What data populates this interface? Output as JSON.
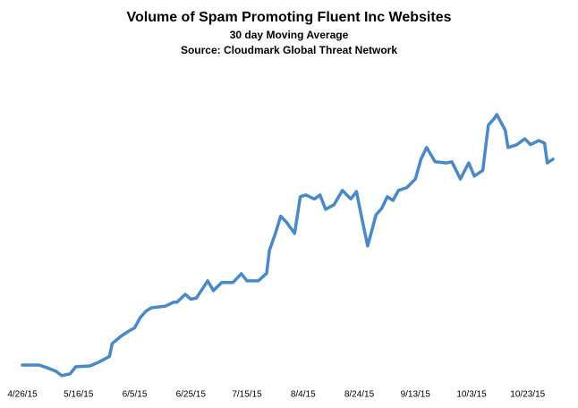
{
  "chart_data": {
    "type": "line",
    "title": "Volume of Spam Promoting Fluent Inc Websites",
    "subtitle": "30 day Moving Average",
    "source": "Source: Cloudmark Global Threat Network",
    "x": [
      "4/26/15",
      "5/2/15",
      "5/5/15",
      "5/8/15",
      "5/10/15",
      "5/13/15",
      "5/15/15",
      "5/20/15",
      "5/23/15",
      "5/27/15",
      "5/28/15",
      "5/31/15",
      "6/3/15",
      "6/5/15",
      "6/7/15",
      "6/9/15",
      "6/11/15",
      "6/16/15",
      "6/19/15",
      "6/20/15",
      "6/23/15",
      "6/25/15",
      "6/27/15",
      "7/1/15",
      "7/3/15",
      "7/6/15",
      "7/10/15",
      "7/13/15",
      "7/15/15",
      "7/19/15",
      "7/22/15",
      "7/23/15",
      "7/25/15",
      "7/27/15",
      "7/29/15",
      "8/1/15",
      "8/3/15",
      "8/5/15",
      "8/8/15",
      "8/10/15",
      "8/12/15",
      "8/15/15",
      "8/18/15",
      "8/21/15",
      "8/23/15",
      "8/25/15",
      "8/27/15",
      "8/30/15",
      "9/1/15",
      "9/3/15",
      "9/5/15",
      "9/7/15",
      "9/10/15",
      "9/13/15",
      "9/15/15",
      "9/17/15",
      "9/20/15",
      "9/24/15",
      "9/26/15",
      "9/29/15",
      "10/2/15",
      "10/4/15",
      "10/7/15",
      "10/9/15",
      "10/11/15",
      "10/12/15",
      "10/15/15",
      "10/16/15",
      "10/19/15",
      "10/22/15",
      "10/24/15",
      "10/27/15",
      "10/29/15",
      "10/30/15",
      "11/1/15"
    ],
    "series": [
      {
        "color": "#4a89c8",
        "values": [
          10,
          10,
          9,
          7.8,
          6.3,
          6.9,
          9.4,
          9.7,
          10.9,
          13,
          17.5,
          20,
          21.9,
          23,
          26.6,
          28.8,
          30,
          30.6,
          32,
          31.9,
          34.7,
          33,
          33.4,
          39.4,
          36,
          38.8,
          38.8,
          41.9,
          39.4,
          39.4,
          42,
          50,
          55.6,
          62,
          60,
          56,
          68.8,
          69.4,
          68,
          69.4,
          64.4,
          66,
          71,
          68,
          70.6,
          61,
          51.6,
          62.5,
          64.7,
          68.8,
          67.5,
          71,
          72,
          75,
          81.9,
          86,
          81,
          80.6,
          81,
          75,
          80.6,
          76,
          78,
          93.8,
          96,
          97.5,
          92,
          86,
          86.9,
          89,
          87,
          88.4,
          87.5,
          80.6,
          81.9
        ]
      }
    ],
    "xlim": [
      "4/26/15",
      "11/1/15"
    ],
    "xticks": [
      "4/26/15",
      "5/16/15",
      "6/5/15",
      "6/25/15",
      "7/15/15",
      "8/4/15",
      "8/24/15",
      "9/13/15",
      "10/3/15",
      "10/23/15"
    ],
    "ylim": [
      0,
      100
    ]
  }
}
